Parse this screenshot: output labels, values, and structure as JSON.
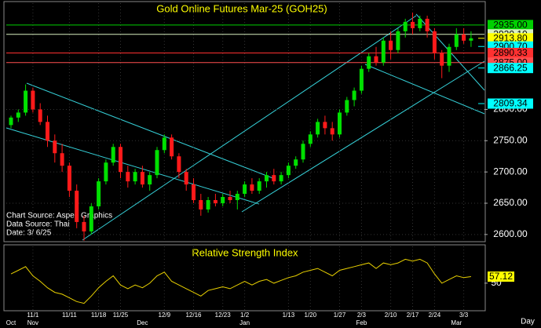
{
  "chart_data": {
    "type": "candlestick",
    "title": "Gold Online Futures Mar-25 (GOH25)",
    "x_axis_label": "Day",
    "categories": [
      null,
      null,
      null,
      "11/1",
      null,
      null,
      null,
      null,
      "11/11",
      null,
      null,
      null,
      "11/18",
      null,
      null,
      "11/25",
      null,
      null,
      null,
      null,
      null,
      "12/9",
      null,
      null,
      null,
      "12/16",
      null,
      null,
      null,
      "12/23",
      null,
      null,
      "1/2",
      null,
      null,
      null,
      null,
      null,
      "1/13",
      null,
      null,
      "1/20",
      null,
      null,
      null,
      "1/27",
      null,
      null,
      "2/3",
      null,
      null,
      null,
      "2/10",
      null,
      null,
      "2/17",
      null,
      null,
      "2/24",
      null,
      null,
      null,
      "3/3",
      null
    ],
    "month_categories": [
      "Oct",
      null,
      null,
      "Nov",
      null,
      null,
      null,
      null,
      null,
      null,
      null,
      null,
      null,
      null,
      null,
      null,
      null,
      null,
      "Dec",
      null,
      null,
      null,
      null,
      null,
      null,
      null,
      null,
      null,
      null,
      null,
      null,
      null,
      "Jan",
      null,
      null,
      null,
      null,
      null,
      null,
      null,
      null,
      null,
      null,
      null,
      null,
      null,
      null,
      null,
      "Feb",
      null,
      null,
      null,
      null,
      null,
      null,
      null,
      null,
      null,
      null,
      null,
      null,
      "Mar",
      null,
      null
    ],
    "ohlc": [
      [
        2775,
        2790,
        2770,
        2787
      ],
      [
        2787,
        2800,
        2780,
        2795
      ],
      [
        2795,
        2840,
        2790,
        2830
      ],
      [
        2830,
        2835,
        2795,
        2800
      ],
      [
        2800,
        2810,
        2775,
        2780
      ],
      [
        2780,
        2790,
        2740,
        2750
      ],
      [
        2750,
        2760,
        2715,
        2730
      ],
      [
        2730,
        2745,
        2700,
        2710
      ],
      [
        2710,
        2715,
        2660,
        2670
      ],
      [
        2670,
        2680,
        2610,
        2620
      ],
      [
        2620,
        2630,
        2590,
        2605
      ],
      [
        2605,
        2650,
        2600,
        2645
      ],
      [
        2645,
        2690,
        2640,
        2685
      ],
      [
        2685,
        2720,
        2680,
        2715
      ],
      [
        2715,
        2745,
        2710,
        2740
      ],
      [
        2740,
        2745,
        2690,
        2700
      ],
      [
        2700,
        2710,
        2675,
        2685
      ],
      [
        2685,
        2705,
        2680,
        2700
      ],
      [
        2700,
        2710,
        2675,
        2680
      ],
      [
        2680,
        2700,
        2670,
        2695
      ],
      [
        2695,
        2740,
        2690,
        2735
      ],
      [
        2735,
        2760,
        2730,
        2755
      ],
      [
        2755,
        2760,
        2720,
        2725
      ],
      [
        2725,
        2730,
        2690,
        2700
      ],
      [
        2700,
        2705,
        2670,
        2680
      ],
      [
        2680,
        2690,
        2650,
        2655
      ],
      [
        2655,
        2665,
        2630,
        2640
      ],
      [
        2640,
        2660,
        2635,
        2655
      ],
      [
        2655,
        2665,
        2645,
        2650
      ],
      [
        2650,
        2665,
        2645,
        2660
      ],
      [
        2660,
        2670,
        2650,
        2655
      ],
      [
        2655,
        2670,
        2640,
        2665
      ],
      [
        2665,
        2685,
        2660,
        2680
      ],
      [
        2680,
        2690,
        2665,
        2670
      ],
      [
        2670,
        2690,
        2665,
        2685
      ],
      [
        2685,
        2700,
        2675,
        2695
      ],
      [
        2695,
        2705,
        2680,
        2685
      ],
      [
        2685,
        2700,
        2680,
        2695
      ],
      [
        2695,
        2715,
        2690,
        2710
      ],
      [
        2710,
        2725,
        2705,
        2720
      ],
      [
        2720,
        2750,
        2715,
        2745
      ],
      [
        2745,
        2765,
        2740,
        2760
      ],
      [
        2760,
        2785,
        2755,
        2780
      ],
      [
        2780,
        2790,
        2760,
        2770
      ],
      [
        2770,
        2780,
        2750,
        2760
      ],
      [
        2760,
        2800,
        2755,
        2795
      ],
      [
        2795,
        2820,
        2790,
        2815
      ],
      [
        2815,
        2835,
        2805,
        2830
      ],
      [
        2830,
        2870,
        2825,
        2865
      ],
      [
        2865,
        2890,
        2860,
        2885
      ],
      [
        2885,
        2900,
        2870,
        2875
      ],
      [
        2875,
        2915,
        2870,
        2910
      ],
      [
        2910,
        2925,
        2880,
        2895
      ],
      [
        2895,
        2930,
        2890,
        2925
      ],
      [
        2925,
        2945,
        2915,
        2940
      ],
      [
        2940,
        2955,
        2920,
        2930
      ],
      [
        2930,
        2950,
        2925,
        2945
      ],
      [
        2945,
        2950,
        2915,
        2925
      ],
      [
        2925,
        2930,
        2880,
        2890
      ],
      [
        2890,
        2895,
        2850,
        2870
      ],
      [
        2870,
        2905,
        2860,
        2900
      ],
      [
        2900,
        2930,
        2895,
        2920
      ],
      [
        2920,
        2930,
        2905,
        2910
      ],
      [
        2910,
        2925,
        2900,
        2913.8
      ]
    ],
    "up_color": "#00e000",
    "down_color": "#ff1a1a",
    "ylim": [
      2591,
      2970
    ],
    "yticks": [
      {
        "value": 2600,
        "label": "2600.00"
      },
      {
        "value": 2650,
        "label": "2650.00"
      },
      {
        "value": 2700,
        "label": "2700.00"
      },
      {
        "value": 2750,
        "label": "2750.00"
      },
      {
        "value": 2800,
        "label": "2800.00"
      }
    ],
    "levels": [
      {
        "value": 2935,
        "label": "2935.00",
        "color": "#00d000",
        "line": true
      },
      {
        "value": 2920.1,
        "label": "2920.10",
        "color": "#d8f0c0",
        "line": true
      },
      {
        "value": 2913.8,
        "label": "2913.80",
        "color": "#ffff00",
        "line": false
      },
      {
        "value": 2900.7,
        "label": "2900.70",
        "color": "#00ffff",
        "line": false
      },
      {
        "value": 2890.33,
        "label": "2890.33",
        "color": "#ff3030",
        "line": true
      },
      {
        "value": 2875,
        "label": "2875.00",
        "color": "#ff5050",
        "line": true
      },
      {
        "value": 2866.25,
        "label": "2866.25",
        "color": "#00ffff",
        "line": false
      },
      {
        "value": 2809.34,
        "label": "2809.34",
        "color": "#00ffff",
        "line": false
      }
    ],
    "grid": true,
    "notes": [
      "Chart Source: Aspen Graphics",
      "Data Source: Thai",
      "Date:   3/ 6/25"
    ],
    "rsi": {
      "title": "Relative Strength Index",
      "color": "#e8d000",
      "values": [
        60,
        64,
        68,
        58,
        52,
        45,
        40,
        38,
        34,
        30,
        28,
        36,
        45,
        52,
        58,
        48,
        44,
        48,
        45,
        50,
        58,
        62,
        52,
        48,
        44,
        40,
        36,
        42,
        44,
        46,
        44,
        48,
        52,
        48,
        52,
        54,
        50,
        53,
        56,
        58,
        62,
        64,
        66,
        62,
        58,
        64,
        66,
        68,
        70,
        72,
        66,
        72,
        70,
        72,
        76,
        74,
        76,
        72,
        60,
        50,
        54,
        58,
        56,
        57.12
      ],
      "value_label": "57.12",
      "ylim": [
        20,
        90
      ],
      "yticks": [
        50
      ]
    }
  }
}
